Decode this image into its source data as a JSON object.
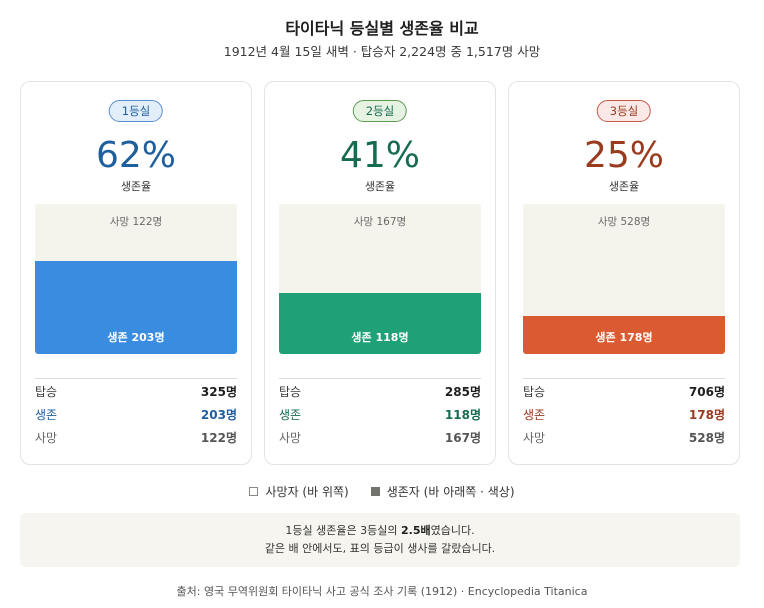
{
  "title": "타이타닉 등실별 생존율 비교",
  "subtitle": "1912년 4월 15일 새벽 · 탑승자 2,224명 중 1,517명 사망",
  "rate_label": "생존율",
  "labels": {
    "boarded": "탑승",
    "survived": "생존",
    "died": "사망"
  },
  "legend": {
    "dead": "사망자 (바 위쪽)",
    "survived": "생존자 (바 아래쪽 · 색상)"
  },
  "note": {
    "line1_pre": "1등실 생존율은 3등실의 ",
    "line1_bold": "2.5배",
    "line1_post": "였습니다.",
    "line2": "같은 배 안에서도, 표의 등급이 생사를 갈랐습니다."
  },
  "source": "출처: 영국 무역위원회 타이타닉 사고 공식 조사 기록 (1912) · Encyclopedia Titanica",
  "chart_data": {
    "type": "bar",
    "categories": [
      "1등실",
      "2등실",
      "3등실"
    ],
    "classes": [
      {
        "name": "1등실",
        "rate": "62%",
        "survival_fraction": 0.62,
        "boarded": "325명",
        "survived": "203명",
        "died": "122명",
        "dead_label": "사망 122명",
        "surv_label": "생존 203명",
        "color": "#3a8ce0",
        "text_color": "#1f5f9e",
        "badge_bg": "#e3eefb",
        "badge_border": "#5a8fd0"
      },
      {
        "name": "2등실",
        "rate": "41%",
        "survival_fraction": 0.41,
        "boarded": "285명",
        "survived": "118명",
        "died": "167명",
        "dead_label": "사망 167명",
        "surv_label": "생존 118명",
        "color": "#1fa076",
        "text_color": "#166b50",
        "badge_bg": "#e6f3e2",
        "badge_border": "#5f9a55"
      },
      {
        "name": "3등실",
        "rate": "25%",
        "survival_fraction": 0.25,
        "boarded": "706명",
        "survived": "178명",
        "died": "528명",
        "dead_label": "사망 528명",
        "surv_label": "생존 178명",
        "color": "#da5a31",
        "text_color": "#9a3a1f",
        "badge_bg": "#fbe9e7",
        "badge_border": "#c45a48"
      }
    ]
  }
}
